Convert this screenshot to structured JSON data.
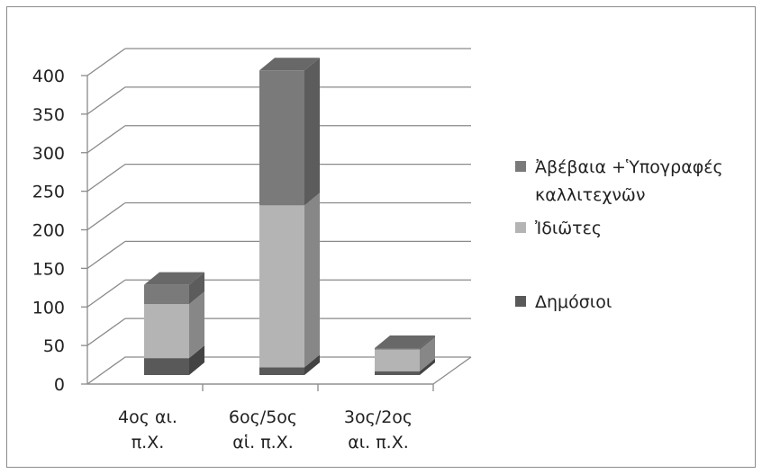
{
  "chart_data": {
    "type": "bar",
    "stacked": true,
    "three_d": true,
    "categories": [
      [
        "4ος αι.",
        "π.Χ."
      ],
      [
        "6ος/5ος",
        "αἱ. π.Χ."
      ],
      [
        "3ος/2ος",
        "αι. π.Χ."
      ]
    ],
    "series": [
      {
        "name": "Δημόσιοι",
        "values": [
          22,
          10,
          5
        ],
        "color": "#595959"
      },
      {
        "name": "Ἰδιῶτες",
        "values": [
          70,
          210,
          28
        ],
        "color": "#b4b4b4"
      },
      {
        "name": [
          "Ἀβέβαια +Ὑπογραφές",
          "καλλιτεχνῶν"
        ],
        "values": [
          25,
          175,
          2
        ],
        "color": "#7a7a7a"
      }
    ],
    "yticks": [
      0,
      50,
      100,
      150,
      200,
      250,
      300,
      350,
      400
    ],
    "ylim": [
      0,
      400
    ],
    "grid": true,
    "legend_position": "right",
    "title": "",
    "xlabel": "",
    "ylabel": ""
  }
}
